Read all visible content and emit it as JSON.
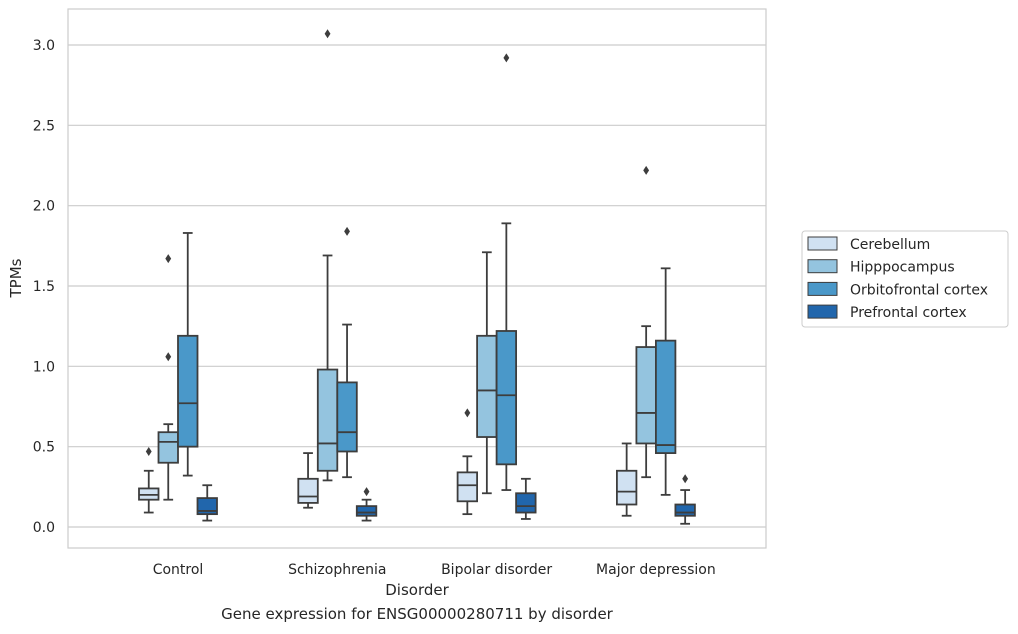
{
  "caption": "Gene expression for ENSG00000280711 by disorder",
  "chart_data": {
    "type": "boxplot",
    "xlabel": "Disorder",
    "ylabel": "TPMs",
    "ylim": [
      -0.12,
      3.23
    ],
    "yticks": [
      0.0,
      0.5,
      1.0,
      1.5,
      2.0,
      2.5,
      3.0
    ],
    "ytick_labels": [
      "0.0",
      "0.5",
      "1.0",
      "1.5",
      "2.0",
      "2.5",
      "3.0"
    ],
    "grid": true,
    "legend_position": "right",
    "categories": [
      "Control",
      "Schizophrenia",
      "Bipolar disorder",
      "Major depression"
    ],
    "series": [
      {
        "name": "Cerebellum",
        "color": "#d0e1f2",
        "boxes": [
          {
            "whislo": 0.09,
            "q1": 0.17,
            "med": 0.2,
            "q3": 0.24,
            "whishi": 0.35,
            "fliers": [
              0.47
            ]
          },
          {
            "whislo": 0.12,
            "q1": 0.15,
            "med": 0.19,
            "q3": 0.3,
            "whishi": 0.46,
            "fliers": []
          },
          {
            "whislo": 0.08,
            "q1": 0.16,
            "med": 0.26,
            "q3": 0.34,
            "whishi": 0.44,
            "fliers": [
              0.71
            ]
          },
          {
            "whislo": 0.07,
            "q1": 0.14,
            "med": 0.22,
            "q3": 0.35,
            "whishi": 0.52,
            "fliers": []
          }
        ]
      },
      {
        "name": "Hipppocampus",
        "color": "#94c4df",
        "boxes": [
          {
            "whislo": 0.17,
            "q1": 0.4,
            "med": 0.53,
            "q3": 0.59,
            "whishi": 0.64,
            "fliers": [
              1.06,
              1.67
            ]
          },
          {
            "whislo": 0.29,
            "q1": 0.35,
            "med": 0.52,
            "q3": 0.98,
            "whishi": 1.69,
            "fliers": [
              3.07
            ]
          },
          {
            "whislo": 0.21,
            "q1": 0.56,
            "med": 0.85,
            "q3": 1.19,
            "whishi": 1.71,
            "fliers": []
          },
          {
            "whislo": 0.31,
            "q1": 0.52,
            "med": 0.71,
            "q3": 1.12,
            "whishi": 1.25,
            "fliers": [
              2.22
            ]
          }
        ]
      },
      {
        "name": "Orbitofrontal cortex",
        "color": "#4a98c9",
        "boxes": [
          {
            "whislo": 0.32,
            "q1": 0.5,
            "med": 0.77,
            "q3": 1.19,
            "whishi": 1.83,
            "fliers": []
          },
          {
            "whislo": 0.31,
            "q1": 0.47,
            "med": 0.59,
            "q3": 0.9,
            "whishi": 1.26,
            "fliers": [
              1.84
            ]
          },
          {
            "whislo": 0.23,
            "q1": 0.39,
            "med": 0.82,
            "q3": 1.22,
            "whishi": 1.89,
            "fliers": [
              2.92
            ]
          },
          {
            "whislo": 0.2,
            "q1": 0.46,
            "med": 0.51,
            "q3": 1.16,
            "whishi": 1.61,
            "fliers": []
          }
        ]
      },
      {
        "name": "Prefrontal cortex",
        "color": "#2166ac",
        "boxes": [
          {
            "whislo": 0.04,
            "q1": 0.08,
            "med": 0.1,
            "q3": 0.18,
            "whishi": 0.26,
            "fliers": []
          },
          {
            "whislo": 0.04,
            "q1": 0.07,
            "med": 0.09,
            "q3": 0.13,
            "whishi": 0.17,
            "fliers": [
              0.22
            ]
          },
          {
            "whislo": 0.05,
            "q1": 0.09,
            "med": 0.13,
            "q3": 0.21,
            "whishi": 0.3,
            "fliers": []
          },
          {
            "whislo": 0.02,
            "q1": 0.07,
            "med": 0.09,
            "q3": 0.14,
            "whishi": 0.23,
            "fliers": [
              0.3
            ]
          }
        ]
      }
    ]
  }
}
